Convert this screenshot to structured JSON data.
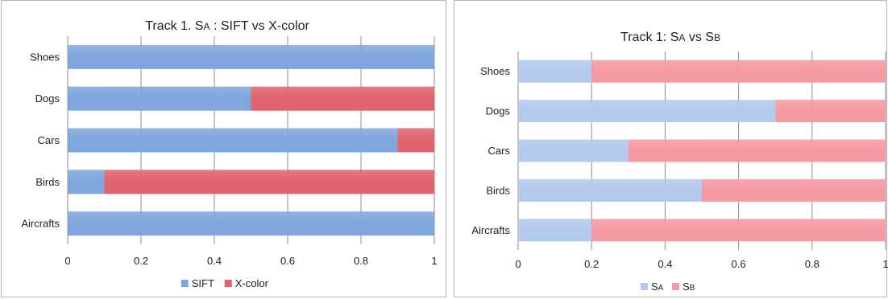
{
  "chart_data": [
    {
      "type": "bar",
      "stacked": true,
      "orientation": "horizontal",
      "title": "Track 1. SA : SIFT vs X-color",
      "categories": [
        "Shoes",
        "Dogs",
        "Cars",
        "Birds",
        "Aircrafts"
      ],
      "series": [
        {
          "name": "SIFT",
          "values": [
            1.0,
            0.5,
            0.9,
            0.1,
            1.0
          ],
          "color": "#7fa7dd"
        },
        {
          "name": "X-color",
          "values": [
            0.0,
            0.5,
            0.1,
            0.9,
            0.0
          ],
          "color": "#e0646f"
        }
      ],
      "xlim": [
        0,
        1
      ],
      "xticks": [
        "0",
        "0.2",
        "0.4",
        "0.6",
        "0.8",
        "1"
      ],
      "grid": true,
      "legend": "bottom"
    },
    {
      "type": "bar",
      "stacked": true,
      "orientation": "horizontal",
      "title": "Track 1: SA vs SB",
      "categories": [
        "Shoes",
        "Dogs",
        "Cars",
        "Birds",
        "Aircrafts"
      ],
      "series": [
        {
          "name": "SA",
          "values": [
            0.2,
            0.7,
            0.3,
            0.5,
            0.2
          ],
          "color": "#b4c9ee"
        },
        {
          "name": "SB",
          "values": [
            0.8,
            0.3,
            0.7,
            0.5,
            0.8
          ],
          "color": "#f59aa4"
        }
      ],
      "xlim": [
        0,
        1
      ],
      "xticks": [
        "0",
        "0.2",
        "0.4",
        "0.6",
        "0.8",
        "1"
      ],
      "grid": true,
      "legend": "bottom"
    }
  ]
}
